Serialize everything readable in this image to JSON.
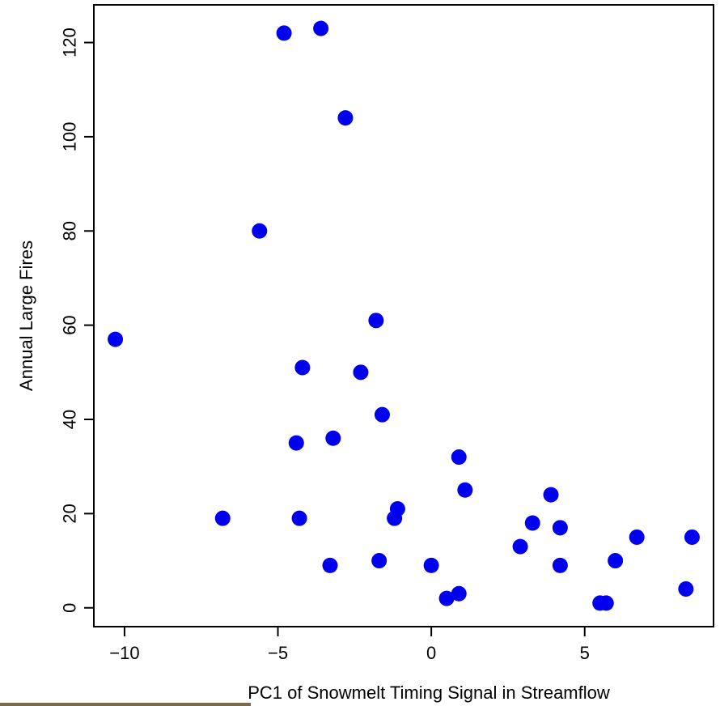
{
  "chart_data": {
    "type": "scatter",
    "title": "",
    "xlabel": "PC1 of Snowmelt Timing Signal in Streamflow",
    "ylabel": "Annual Large Fires",
    "xlim": [
      -11,
      9.2
    ],
    "ylim": [
      -4,
      128
    ],
    "x_ticks": [
      -10,
      -5,
      0,
      5
    ],
    "y_ticks": [
      0,
      20,
      40,
      60,
      80,
      100,
      120
    ],
    "grid": false,
    "legend": "none",
    "marker_color": "#0000ee",
    "series": [
      {
        "points": [
          {
            "x": -10.3,
            "y": 57
          },
          {
            "x": -6.8,
            "y": 19
          },
          {
            "x": -5.6,
            "y": 80
          },
          {
            "x": -4.8,
            "y": 122
          },
          {
            "x": -3.6,
            "y": 123
          },
          {
            "x": -2.8,
            "y": 104
          },
          {
            "x": -4.4,
            "y": 35
          },
          {
            "x": -4.3,
            "y": 19
          },
          {
            "x": -4.2,
            "y": 51
          },
          {
            "x": -3.3,
            "y": 9
          },
          {
            "x": -3.2,
            "y": 36
          },
          {
            "x": -2.3,
            "y": 50
          },
          {
            "x": -1.8,
            "y": 61
          },
          {
            "x": -1.7,
            "y": 10
          },
          {
            "x": -1.6,
            "y": 41
          },
          {
            "x": -1.2,
            "y": 19
          },
          {
            "x": -1.1,
            "y": 21
          },
          {
            "x": 0.0,
            "y": 9
          },
          {
            "x": 0.5,
            "y": 2
          },
          {
            "x": 0.9,
            "y": 3
          },
          {
            "x": 0.9,
            "y": 32
          },
          {
            "x": 1.1,
            "y": 25
          },
          {
            "x": 2.9,
            "y": 13
          },
          {
            "x": 3.3,
            "y": 18
          },
          {
            "x": 3.9,
            "y": 24
          },
          {
            "x": 4.2,
            "y": 17
          },
          {
            "x": 4.2,
            "y": 9
          },
          {
            "x": 5.5,
            "y": 1
          },
          {
            "x": 5.7,
            "y": 1
          },
          {
            "x": 6.0,
            "y": 10
          },
          {
            "x": 6.7,
            "y": 15
          },
          {
            "x": 8.3,
            "y": 4
          },
          {
            "x": 8.5,
            "y": 15
          }
        ]
      }
    ]
  }
}
